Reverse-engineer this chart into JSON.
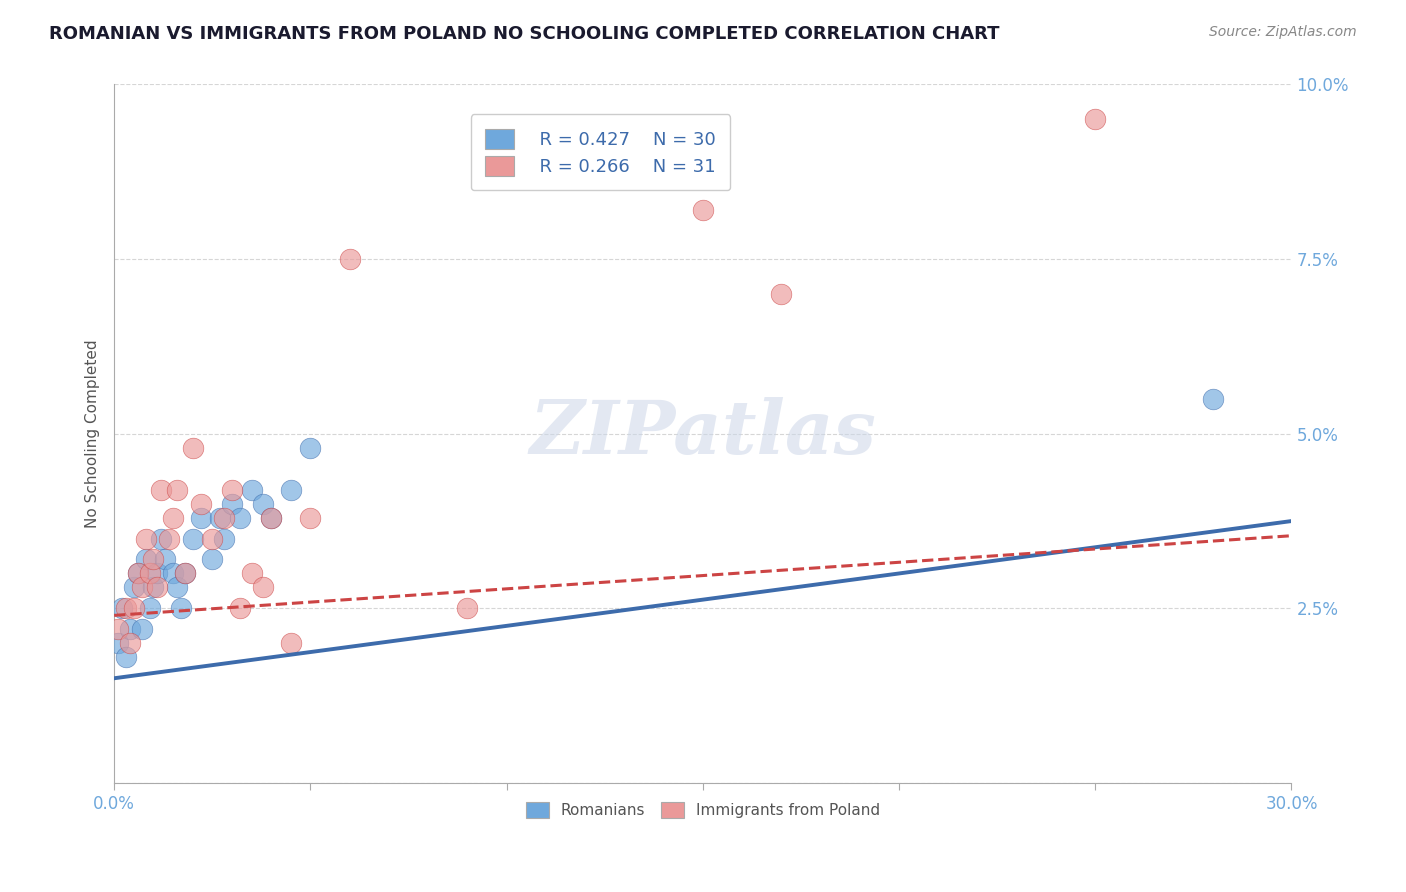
{
  "title": "ROMANIAN VS IMMIGRANTS FROM POLAND NO SCHOOLING COMPLETED CORRELATION CHART",
  "source": "Source: ZipAtlas.com",
  "ylabel": "No Schooling Completed",
  "xlim": [
    0.0,
    0.3
  ],
  "ylim": [
    0.0,
    0.1
  ],
  "legend_r1": "R = 0.427",
  "legend_n1": "N = 30",
  "legend_r2": "R = 0.266",
  "legend_n2": "N = 31",
  "color_blue": "#6fa8dc",
  "color_pink": "#ea9999",
  "color_blue_line": "#3d6bab",
  "color_pink_line": "#cc4444",
  "color_title": "#1a1a2e",
  "color_tick": "#6fa8dc",
  "background_color": "#ffffff",
  "romanians_x": [
    0.001,
    0.002,
    0.003,
    0.004,
    0.005,
    0.006,
    0.007,
    0.008,
    0.009,
    0.01,
    0.011,
    0.012,
    0.013,
    0.015,
    0.016,
    0.017,
    0.018,
    0.02,
    0.022,
    0.025,
    0.027,
    0.028,
    0.03,
    0.032,
    0.035,
    0.038,
    0.04,
    0.045,
    0.05,
    0.28
  ],
  "romanians_y": [
    0.02,
    0.025,
    0.018,
    0.022,
    0.028,
    0.03,
    0.022,
    0.032,
    0.025,
    0.028,
    0.03,
    0.035,
    0.032,
    0.03,
    0.028,
    0.025,
    0.03,
    0.035,
    0.038,
    0.032,
    0.038,
    0.035,
    0.04,
    0.038,
    0.042,
    0.04,
    0.038,
    0.042,
    0.048,
    0.055
  ],
  "poland_x": [
    0.001,
    0.003,
    0.004,
    0.005,
    0.006,
    0.007,
    0.008,
    0.009,
    0.01,
    0.011,
    0.012,
    0.014,
    0.015,
    0.016,
    0.018,
    0.02,
    0.022,
    0.025,
    0.028,
    0.03,
    0.032,
    0.035,
    0.038,
    0.04,
    0.045,
    0.05,
    0.06,
    0.09,
    0.15,
    0.17,
    0.25
  ],
  "poland_y": [
    0.022,
    0.025,
    0.02,
    0.025,
    0.03,
    0.028,
    0.035,
    0.03,
    0.032,
    0.028,
    0.042,
    0.035,
    0.038,
    0.042,
    0.03,
    0.048,
    0.04,
    0.035,
    0.038,
    0.042,
    0.025,
    0.03,
    0.028,
    0.038,
    0.02,
    0.038,
    0.075,
    0.025,
    0.082,
    0.07,
    0.095
  ],
  "trend_rom_intercept": 0.015,
  "trend_rom_slope": 0.075,
  "trend_pol_intercept": 0.024,
  "trend_pol_slope": 0.038
}
